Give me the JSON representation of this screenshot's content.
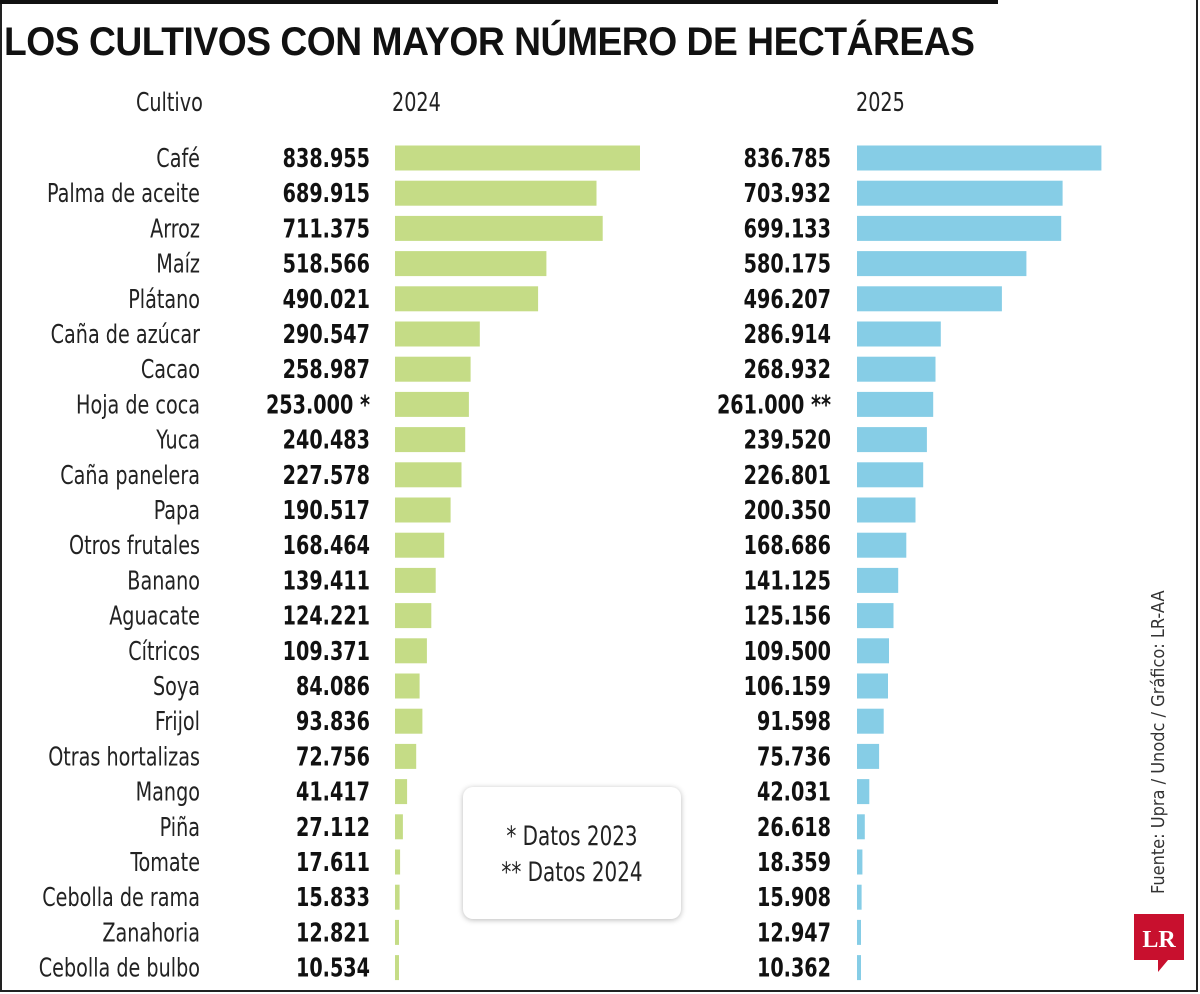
{
  "title": "LOS CULTIVOS CON MAYOR NÚMERO DE HECTÁREAS",
  "headers": {
    "crop": "Cultivo",
    "year1": "2024",
    "year2": "2025"
  },
  "colors": {
    "bar2024": "#c5dc86",
    "bar2025": "#86cde6",
    "logo": "#c8102e"
  },
  "notes": {
    "line1": "* Datos 2023",
    "line2": "** Datos 2024"
  },
  "source": "Fuente: Upra / Unodc / Gráfico: LR-AA",
  "logo_text": "LR",
  "chart_data": {
    "type": "bar",
    "orientation": "horizontal",
    "title": "LOS CULTIVOS CON MAYOR NÚMERO DE HECTÁREAS",
    "categories": [
      "Café",
      "Palma de aceite",
      "Arroz",
      "Maíz",
      "Plátano",
      "Caña de azúcar",
      "Cacao",
      "Hoja de coca",
      "Yuca",
      "Caña panelera",
      "Papa",
      "Otros frutales",
      "Banano",
      "Aguacate",
      "Cítricos",
      "Soya",
      "Frijol",
      "Otras hortalizas",
      "Mango",
      "Piña",
      "Tomate",
      "Cebolla de rama",
      "Zanahoria",
      "Cebolla de bulbo"
    ],
    "series": [
      {
        "name": "2024",
        "values": [
          838955,
          689915,
          711375,
          518566,
          490021,
          290547,
          258987,
          253000,
          240483,
          227578,
          190517,
          168464,
          139411,
          124221,
          109371,
          84086,
          93836,
          72756,
          41417,
          27112,
          17611,
          15833,
          12821,
          10534
        ],
        "labels": [
          "838.955",
          "689.915",
          "711.375",
          "518.566",
          "490.021",
          "290.547",
          "258.987",
          "253.000 *",
          "240.483",
          "227.578",
          "190.517",
          "168.464",
          "139.411",
          "124.221",
          "109.371",
          "84.086",
          "93.836",
          "72.756",
          "41.417",
          "27.112",
          "17.611",
          "15.833",
          "12.821",
          "10.534"
        ]
      },
      {
        "name": "2025",
        "values": [
          836785,
          703932,
          699133,
          580175,
          496207,
          286914,
          268932,
          261000,
          239520,
          226801,
          200350,
          168686,
          141125,
          125156,
          109500,
          106159,
          91598,
          75736,
          42031,
          26618,
          18359,
          15908,
          12947,
          10362
        ],
        "labels": [
          "836.785",
          "703.932",
          "699.133",
          "580.175",
          "496.207",
          "286.914",
          "268.932",
          "261.000 **",
          "239.520",
          "226.801",
          "200.350",
          "168.686",
          "141.125",
          "125.156",
          "109.500",
          "106.159",
          "91.598",
          "75.736",
          "42.031",
          "26.618",
          "18.359",
          "15.908",
          "12.947",
          "10.362"
        ]
      }
    ],
    "grid": false,
    "legend": "none"
  }
}
